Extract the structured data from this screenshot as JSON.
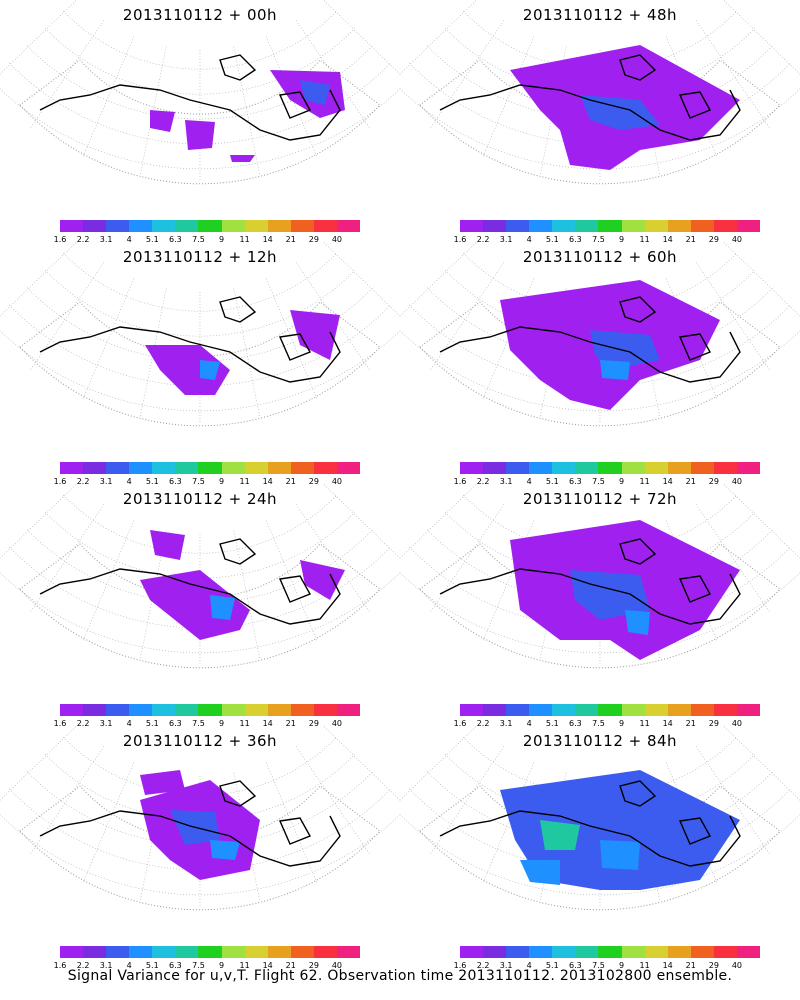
{
  "footer": "Signal Variance for u,v,T. Flight 62. Observation time 2013110112. 2013102800 ensemble.",
  "colorbar": {
    "colors": [
      "#a020f0",
      "#7a2ce0",
      "#3c5cf0",
      "#1e90ff",
      "#1ec0e0",
      "#20c8a0",
      "#20d020",
      "#a0e040",
      "#d8d030",
      "#e8a020",
      "#f06020",
      "#f83040",
      "#f02080"
    ],
    "labels": [
      "1.6",
      "2.2",
      "3.1",
      "4",
      "5.1",
      "6.3",
      "7.5",
      "9",
      "11",
      "14",
      "21",
      "29",
      "40"
    ]
  },
  "panels": [
    {
      "title": "2013110112 + 00h"
    },
    {
      "title": "2013110112 + 48h"
    },
    {
      "title": "2013110112 + 12h"
    },
    {
      "title": "2013110112 + 60h"
    },
    {
      "title": "2013110112 + 24h"
    },
    {
      "title": "2013110112 + 72h"
    },
    {
      "title": "2013110112 + 36h"
    },
    {
      "title": "2013110112 + 84h"
    }
  ]
}
